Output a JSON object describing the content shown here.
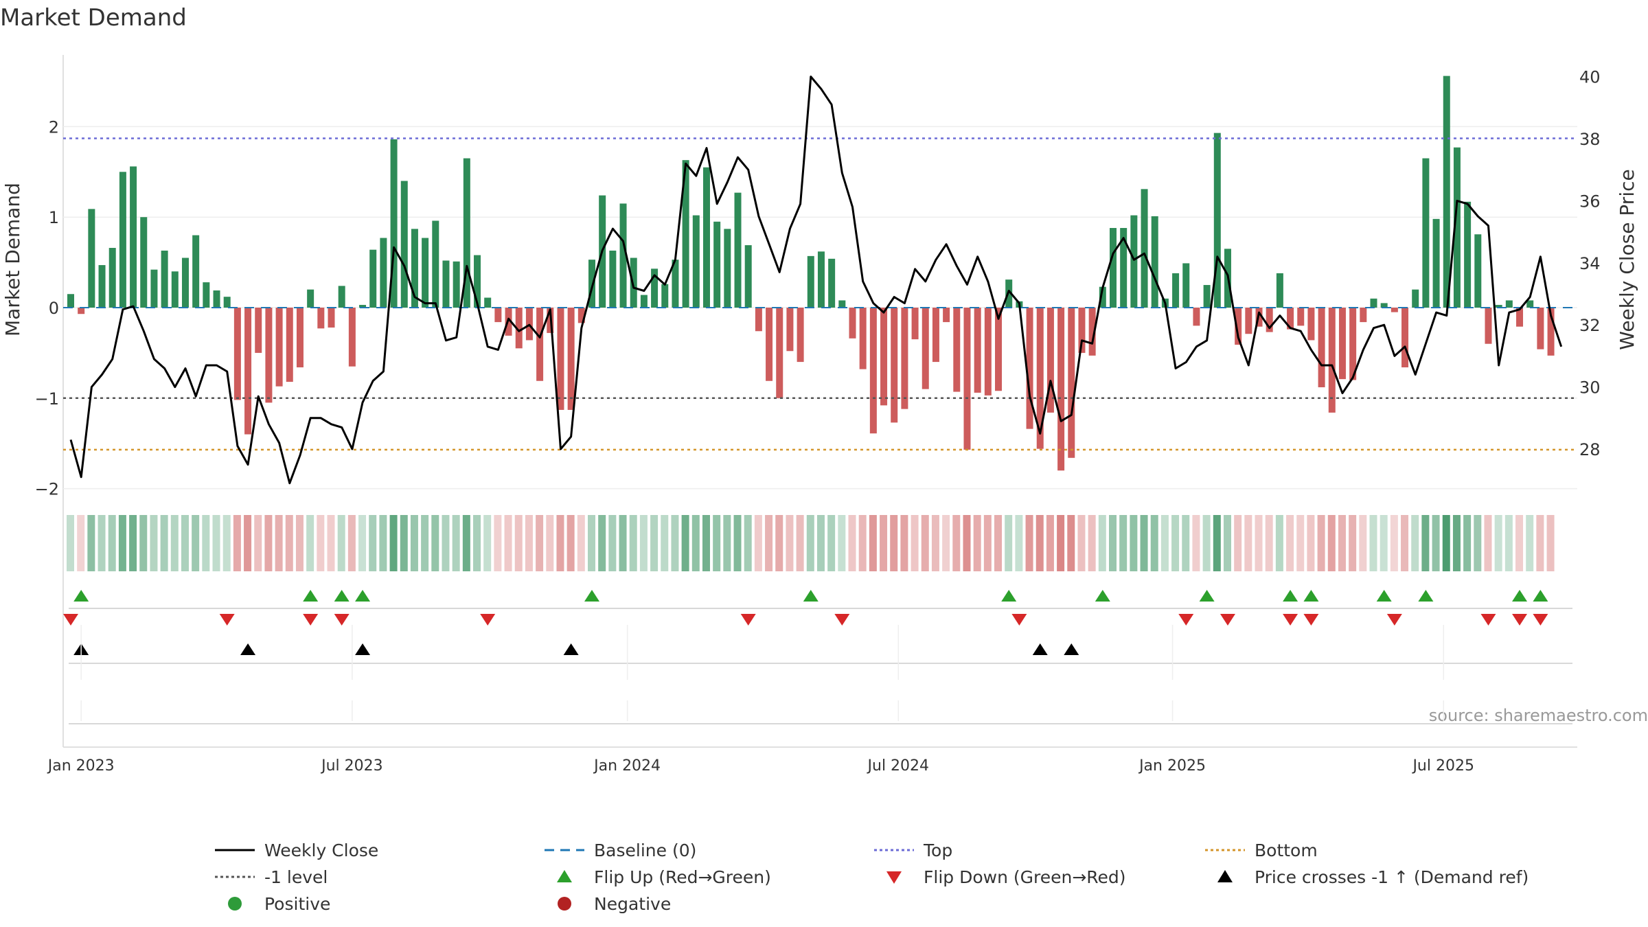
{
  "chart_data": {
    "type": "bar+line",
    "title": "Market Demand",
    "ylabel": "Market Demand",
    "y2label": "Weekly Close Price",
    "source": "source: sharemaestro.com",
    "ylim": [
      -2.0,
      2.6
    ],
    "y2lim": [
      26.3,
      40.3
    ],
    "yticks": [
      -2,
      -1,
      0,
      1,
      2
    ],
    "y2ticks": [
      28,
      30,
      32,
      34,
      36,
      38,
      40
    ],
    "xtick_labels": [
      "Jan 2023",
      "Jul 2023",
      "Jan 2024",
      "Jul 2024",
      "Jan 2025",
      "Jul 2025"
    ],
    "xtick_weeks": [
      1,
      27,
      53.4,
      79.4,
      105.7,
      131.7
    ],
    "levels": {
      "top": 1.87,
      "minus_one": -1.0,
      "bottom": -1.57,
      "baseline": 0
    },
    "colors": {
      "positive": "#2e8b57",
      "negative": "#cd5c5c",
      "price": "#000000",
      "top": "#6b6bd6",
      "bottom": "#d4952a",
      "minus_one": "#555555",
      "baseline": "#1f77b4",
      "flip_up": "#2ca02c",
      "flip_down": "#d62728",
      "price_cross": "#000000",
      "legend_pos": "#2e9b3a",
      "legend_neg": "#b22222"
    },
    "demand": [
      0.15,
      -0.07,
      1.09,
      0.47,
      0.66,
      1.5,
      1.56,
      1.0,
      0.42,
      0.63,
      0.4,
      0.55,
      0.8,
      0.28,
      0.19,
      0.12,
      -1.02,
      -1.4,
      -0.5,
      -1.05,
      -0.87,
      -0.82,
      -0.66,
      0.2,
      -0.23,
      -0.22,
      0.24,
      -0.65,
      0.03,
      0.64,
      0.77,
      1.86,
      1.4,
      0.87,
      0.77,
      0.96,
      0.52,
      0.51,
      1.65,
      0.58,
      0.11,
      -0.16,
      -0.31,
      -0.45,
      -0.36,
      -0.81,
      -0.28,
      -1.13,
      -1.13,
      -0.17,
      0.53,
      1.24,
      0.63,
      1.15,
      0.55,
      0.14,
      0.43,
      0.26,
      0.53,
      1.63,
      1.02,
      1.55,
      0.95,
      0.87,
      1.27,
      0.69,
      -0.26,
      -0.81,
      -1.0,
      -0.48,
      -0.6,
      0.57,
      0.62,
      0.54,
      0.08,
      -0.34,
      -0.68,
      -1.39,
      -1.08,
      -1.27,
      -1.12,
      -0.35,
      -0.9,
      -0.6,
      -0.16,
      -0.93,
      -1.57,
      -0.94,
      -0.97,
      -0.92,
      0.31,
      0.07,
      -1.34,
      -1.56,
      -1.16,
      -1.8,
      -1.66,
      -0.5,
      -0.53,
      0.23,
      0.88,
      0.88,
      1.02,
      1.31,
      1.01,
      0.1,
      0.38,
      0.49,
      -0.2,
      0.25,
      1.93,
      0.65,
      -0.41,
      -0.29,
      -0.21,
      -0.27,
      0.38,
      -0.24,
      -0.2,
      -0.36,
      -0.88,
      -1.16,
      -0.79,
      -0.8,
      -0.16,
      0.1,
      0.05,
      -0.05,
      -0.66,
      0.2,
      1.65,
      0.98,
      2.56,
      1.77,
      1.17,
      0.81,
      -0.4,
      0.03,
      0.08,
      -0.21,
      0.08,
      -0.46,
      -0.53
    ],
    "price": [
      28.3,
      27.1,
      30.0,
      30.4,
      30.9,
      32.5,
      32.6,
      31.8,
      30.9,
      30.6,
      30.0,
      30.6,
      29.7,
      30.7,
      30.7,
      30.5,
      28.1,
      27.5,
      29.7,
      28.8,
      28.2,
      26.9,
      27.8,
      29.0,
      29.0,
      28.8,
      28.7,
      28.0,
      29.5,
      30.2,
      30.5,
      34.5,
      33.9,
      32.9,
      32.7,
      32.7,
      31.5,
      31.6,
      33.9,
      32.7,
      31.3,
      31.2,
      32.2,
      31.8,
      32.0,
      31.6,
      32.5,
      28.0,
      28.4,
      31.9,
      33.2,
      34.4,
      35.1,
      34.7,
      33.2,
      33.1,
      33.6,
      33.3,
      34.1,
      37.2,
      36.8,
      37.7,
      35.9,
      36.6,
      37.4,
      37.0,
      35.5,
      34.6,
      33.7,
      35.1,
      35.9,
      40.0,
      39.6,
      39.1,
      36.9,
      35.8,
      33.4,
      32.7,
      32.4,
      32.9,
      32.7,
      33.8,
      33.4,
      34.1,
      34.6,
      33.9,
      33.3,
      34.2,
      33.4,
      32.2,
      33.1,
      32.7,
      29.7,
      28.5,
      30.2,
      28.9,
      29.1,
      31.5,
      31.4,
      33.2,
      34.3,
      34.8,
      34.1,
      34.3,
      33.5,
      32.7,
      30.6,
      30.8,
      31.3,
      31.5,
      34.2,
      33.6,
      31.6,
      30.7,
      32.4,
      31.9,
      32.3,
      31.9,
      31.8,
      31.2,
      30.7,
      30.7,
      29.8,
      30.3,
      31.2,
      31.9,
      32.0,
      31.0,
      31.3,
      30.4,
      31.4,
      32.4,
      32.3,
      36.0,
      35.9,
      35.5,
      35.2,
      30.7,
      32.4,
      32.5,
      32.9,
      34.2,
      32.3,
      31.3
    ],
    "flip_up_weeks": [
      1,
      23,
      26,
      28,
      50,
      71,
      90,
      99,
      109,
      117,
      119,
      126,
      130,
      139,
      141
    ],
    "flip_down_weeks": [
      0,
      15,
      23,
      26,
      40,
      65,
      74,
      91,
      107,
      111,
      117,
      119,
      127,
      136,
      139,
      141
    ],
    "price_cross_weeks": [
      1,
      17,
      28,
      48,
      93,
      96
    ]
  },
  "legend": {
    "items": [
      {
        "label": "Weekly Close",
        "symbol": "solid-line"
      },
      {
        "label": "Baseline (0)",
        "symbol": "dash-blue"
      },
      {
        "label": "Top",
        "symbol": "dot-purple"
      },
      {
        "label": "Bottom",
        "symbol": "dot-orange"
      },
      {
        "label": "-1 level",
        "symbol": "dot-gray"
      },
      {
        "label": "Flip Up (Red→Green)",
        "symbol": "tri-up-green"
      },
      {
        "label": "Flip Down (Green→Red)",
        "symbol": "tri-down-red"
      },
      {
        "label": "Price crosses -1 ↑ (Demand ref)",
        "symbol": "tri-up-black"
      },
      {
        "label": "Positive",
        "symbol": "circle-green"
      },
      {
        "label": "Negative",
        "symbol": "circle-red"
      }
    ]
  }
}
